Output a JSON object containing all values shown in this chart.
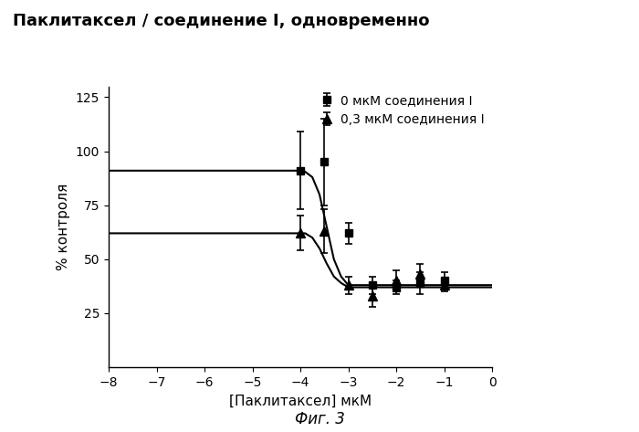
{
  "title": "Паклитаксел / соединение I, одновременно",
  "xlabel": "[Паклитаксел] мкМ",
  "ylabel": "% контроля",
  "caption": "Фиг. 3",
  "xlim": [
    -8,
    0
  ],
  "ylim": [
    0,
    130
  ],
  "xticks": [
    -8,
    -7,
    -6,
    -5,
    -4,
    -3,
    -2,
    -1,
    0
  ],
  "yticks": [
    25,
    50,
    75,
    100,
    125
  ],
  "series1": {
    "label": "0 мкМ соединения I",
    "x": [
      -4.0,
      -3.5,
      -3.0,
      -2.5,
      -2.0,
      -1.5,
      -1.0
    ],
    "y": [
      91,
      95,
      62,
      38,
      37,
      39,
      40
    ],
    "yerr": [
      18,
      20,
      5,
      4,
      3,
      5,
      4
    ],
    "marker": "s",
    "color": "black"
  },
  "series2": {
    "label": "0,3 мкМ соединения I",
    "x": [
      -4.0,
      -3.5,
      -3.0,
      -2.5,
      -2.0,
      -1.5,
      -1.0
    ],
    "y": [
      62,
      63,
      38,
      33,
      40,
      43,
      38
    ],
    "yerr": [
      8,
      10,
      4,
      5,
      5,
      5,
      3
    ],
    "marker": "^",
    "color": "black"
  },
  "curve1_x": [
    -8.0,
    -4.6,
    -4.3,
    -4.1,
    -3.9,
    -3.75,
    -3.6,
    -3.45,
    -3.3,
    -3.15,
    -3.0,
    -2.5,
    -1.0,
    0.0
  ],
  "curve1_y": [
    91,
    91,
    91,
    91,
    90.5,
    88,
    80,
    65,
    50,
    42,
    38,
    38,
    38,
    38
  ],
  "curve2_x": [
    -8.0,
    -4.6,
    -4.3,
    -4.1,
    -3.9,
    -3.75,
    -3.6,
    -3.45,
    -3.3,
    -3.15,
    -3.0,
    -2.5,
    -1.0,
    0.0
  ],
  "curve2_y": [
    62,
    62,
    62,
    62,
    62,
    60,
    55,
    48,
    42,
    39,
    37,
    37,
    37,
    37
  ],
  "background_color": "white",
  "text_color": "black",
  "title_fontsize": 13,
  "label_fontsize": 11,
  "tick_fontsize": 10,
  "legend_fontsize": 10,
  "caption_fontsize": 12
}
